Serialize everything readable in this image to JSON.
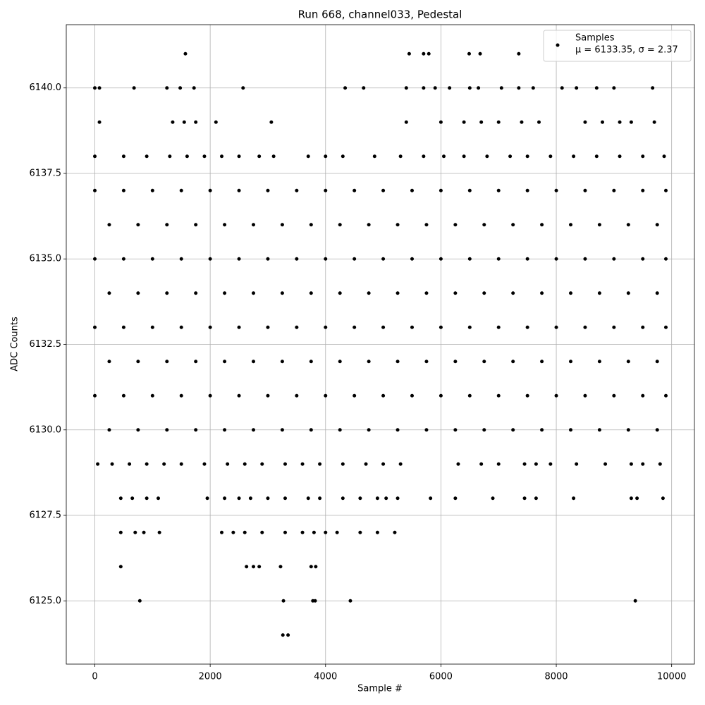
{
  "chart_data": {
    "type": "scatter",
    "title": "Run 668, channel033, Pedestal",
    "x_label": "Sample #",
    "y_label": "ADC Counts",
    "annotation": "μ = 6133.35, σ = 2.37",
    "xlim": [
      -495,
      10395
    ],
    "ylim": [
      6123.15,
      6141.85
    ],
    "xticks": [
      0,
      2000,
      4000,
      6000,
      8000,
      10000
    ],
    "yticks": [
      {
        "value": 6125,
        "label": "6125.0"
      },
      {
        "value": 6127.5,
        "label": "6127.5"
      },
      {
        "value": 6130,
        "label": "6130.0"
      },
      {
        "value": 6132.5,
        "label": "6132.5"
      },
      {
        "value": 6135,
        "label": "6135.0"
      },
      {
        "value": 6137.5,
        "label": "6137.5"
      },
      {
        "value": 6140,
        "label": "6140.0"
      }
    ],
    "grid": true,
    "legend": "upper right",
    "series": [
      {
        "name": "Samples",
        "color": "#000000",
        "x": [
          1570,
          5450,
          5700,
          5790,
          6490,
          6680,
          7350,
          0,
          80,
          680,
          1250,
          1480,
          1720,
          2570,
          4340,
          4660,
          5400,
          5700,
          5900,
          6150,
          6500,
          6650,
          7050,
          7350,
          7600,
          8100,
          8350,
          8700,
          9000,
          9670,
          80,
          1350,
          1550,
          1750,
          2100,
          3060,
          5400,
          6000,
          6400,
          6700,
          7000,
          7400,
          7700,
          8500,
          8800,
          9100,
          9300,
          9700,
          0,
          500,
          900,
          1300,
          1600,
          1900,
          2200,
          2500,
          2850,
          3100,
          3700,
          4000,
          4300,
          4850,
          5300,
          5700,
          6050,
          6400,
          6800,
          7200,
          7500,
          7900,
          8300,
          8700,
          9100,
          9500,
          9870,
          0,
          500,
          1000,
          1500,
          2000,
          2500,
          3000,
          3500,
          4000,
          4500,
          5000,
          5500,
          6000,
          6500,
          7000,
          7500,
          8000,
          8500,
          9000,
          9500,
          9900,
          250,
          750,
          1250,
          1750,
          2250,
          2750,
          3250,
          3750,
          4250,
          4750,
          5250,
          5750,
          6250,
          6750,
          7250,
          7750,
          8250,
          8750,
          9250,
          9750,
          0,
          500,
          1000,
          1500,
          2000,
          2500,
          3000,
          3500,
          4000,
          4500,
          5000,
          5500,
          6000,
          6500,
          7000,
          7500,
          8000,
          8500,
          9000,
          9500,
          9900,
          250,
          750,
          1250,
          1750,
          2250,
          2750,
          3250,
          3750,
          4250,
          4750,
          5250,
          5750,
          6250,
          6750,
          7250,
          7750,
          8250,
          8750,
          9250,
          9750,
          0,
          500,
          1000,
          1500,
          2000,
          2500,
          3000,
          3500,
          4000,
          4500,
          5000,
          5500,
          6000,
          6500,
          7000,
          7500,
          8000,
          8500,
          9000,
          9500,
          9900,
          250,
          750,
          1250,
          1750,
          2250,
          2750,
          3250,
          3750,
          4250,
          4750,
          5250,
          5750,
          6250,
          6750,
          7250,
          7750,
          8250,
          8750,
          9250,
          9750,
          0,
          500,
          1000,
          1500,
          2000,
          2500,
          3000,
          3500,
          4000,
          4500,
          5000,
          5500,
          6000,
          6500,
          7000,
          7500,
          8000,
          8500,
          9000,
          9500,
          9900,
          250,
          750,
          1250,
          1750,
          2250,
          2750,
          3250,
          3750,
          4250,
          4750,
          5250,
          5750,
          6250,
          6750,
          7250,
          7750,
          8250,
          8750,
          9250,
          9750,
          50,
          300,
          600,
          900,
          1200,
          1500,
          1900,
          2300,
          2600,
          2900,
          3300,
          3600,
          3900,
          4300,
          4700,
          5000,
          5300,
          6300,
          6700,
          7000,
          7450,
          7650,
          7900,
          8350,
          8850,
          9300,
          9500,
          9800,
          450,
          650,
          900,
          1100,
          1950,
          2250,
          2500,
          2700,
          3000,
          3300,
          3700,
          3900,
          4300,
          4600,
          4900,
          5050,
          5250,
          5820,
          6250,
          6900,
          7450,
          7650,
          8300,
          9300,
          9400,
          9850,
          450,
          700,
          850,
          1120,
          2200,
          2400,
          2600,
          2900,
          3300,
          3600,
          3800,
          4000,
          4200,
          4600,
          4900,
          5200,
          450,
          2630,
          2750,
          2850,
          3220,
          3750,
          3830,
          780,
          3270,
          3780,
          3820,
          4430,
          9370,
          3260,
          3350
        ],
        "values": [
          6141,
          6141,
          6141,
          6141,
          6141,
          6141,
          6141,
          6140,
          6140,
          6140,
          6140,
          6140,
          6140,
          6140,
          6140,
          6140,
          6140,
          6140,
          6140,
          6140,
          6140,
          6140,
          6140,
          6140,
          6140,
          6140,
          6140,
          6140,
          6140,
          6140,
          6139,
          6139,
          6139,
          6139,
          6139,
          6139,
          6139,
          6139,
          6139,
          6139,
          6139,
          6139,
          6139,
          6139,
          6139,
          6139,
          6139,
          6139,
          6138,
          6138,
          6138,
          6138,
          6138,
          6138,
          6138,
          6138,
          6138,
          6138,
          6138,
          6138,
          6138,
          6138,
          6138,
          6138,
          6138,
          6138,
          6138,
          6138,
          6138,
          6138,
          6138,
          6138,
          6138,
          6138,
          6138,
          6137,
          6137,
          6137,
          6137,
          6137,
          6137,
          6137,
          6137,
          6137,
          6137,
          6137,
          6137,
          6137,
          6137,
          6137,
          6137,
          6137,
          6137,
          6137,
          6137,
          6137,
          6136,
          6136,
          6136,
          6136,
          6136,
          6136,
          6136,
          6136,
          6136,
          6136,
          6136,
          6136,
          6136,
          6136,
          6136,
          6136,
          6136,
          6136,
          6136,
          6136,
          6135,
          6135,
          6135,
          6135,
          6135,
          6135,
          6135,
          6135,
          6135,
          6135,
          6135,
          6135,
          6135,
          6135,
          6135,
          6135,
          6135,
          6135,
          6135,
          6135,
          6135,
          6134,
          6134,
          6134,
          6134,
          6134,
          6134,
          6134,
          6134,
          6134,
          6134,
          6134,
          6134,
          6134,
          6134,
          6134,
          6134,
          6134,
          6134,
          6134,
          6134,
          6133,
          6133,
          6133,
          6133,
          6133,
          6133,
          6133,
          6133,
          6133,
          6133,
          6133,
          6133,
          6133,
          6133,
          6133,
          6133,
          6133,
          6133,
          6133,
          6133,
          6133,
          6132,
          6132,
          6132,
          6132,
          6132,
          6132,
          6132,
          6132,
          6132,
          6132,
          6132,
          6132,
          6132,
          6132,
          6132,
          6132,
          6132,
          6132,
          6132,
          6132,
          6131,
          6131,
          6131,
          6131,
          6131,
          6131,
          6131,
          6131,
          6131,
          6131,
          6131,
          6131,
          6131,
          6131,
          6131,
          6131,
          6131,
          6131,
          6131,
          6131,
          6131,
          6130,
          6130,
          6130,
          6130,
          6130,
          6130,
          6130,
          6130,
          6130,
          6130,
          6130,
          6130,
          6130,
          6130,
          6130,
          6130,
          6130,
          6130,
          6130,
          6130,
          6129,
          6129,
          6129,
          6129,
          6129,
          6129,
          6129,
          6129,
          6129,
          6129,
          6129,
          6129,
          6129,
          6129,
          6129,
          6129,
          6129,
          6129,
          6129,
          6129,
          6129,
          6129,
          6129,
          6129,
          6129,
          6129,
          6129,
          6129,
          6128,
          6128,
          6128,
          6128,
          6128,
          6128,
          6128,
          6128,
          6128,
          6128,
          6128,
          6128,
          6128,
          6128,
          6128,
          6128,
          6128,
          6128,
          6128,
          6128,
          6128,
          6128,
          6128,
          6128,
          6128,
          6128,
          6127,
          6127,
          6127,
          6127,
          6127,
          6127,
          6127,
          6127,
          6127,
          6127,
          6127,
          6127,
          6127,
          6127,
          6127,
          6127,
          6126,
          6126,
          6126,
          6126,
          6126,
          6126,
          6126,
          6125,
          6125,
          6125,
          6125,
          6125,
          6125,
          6124,
          6124
        ]
      }
    ]
  }
}
